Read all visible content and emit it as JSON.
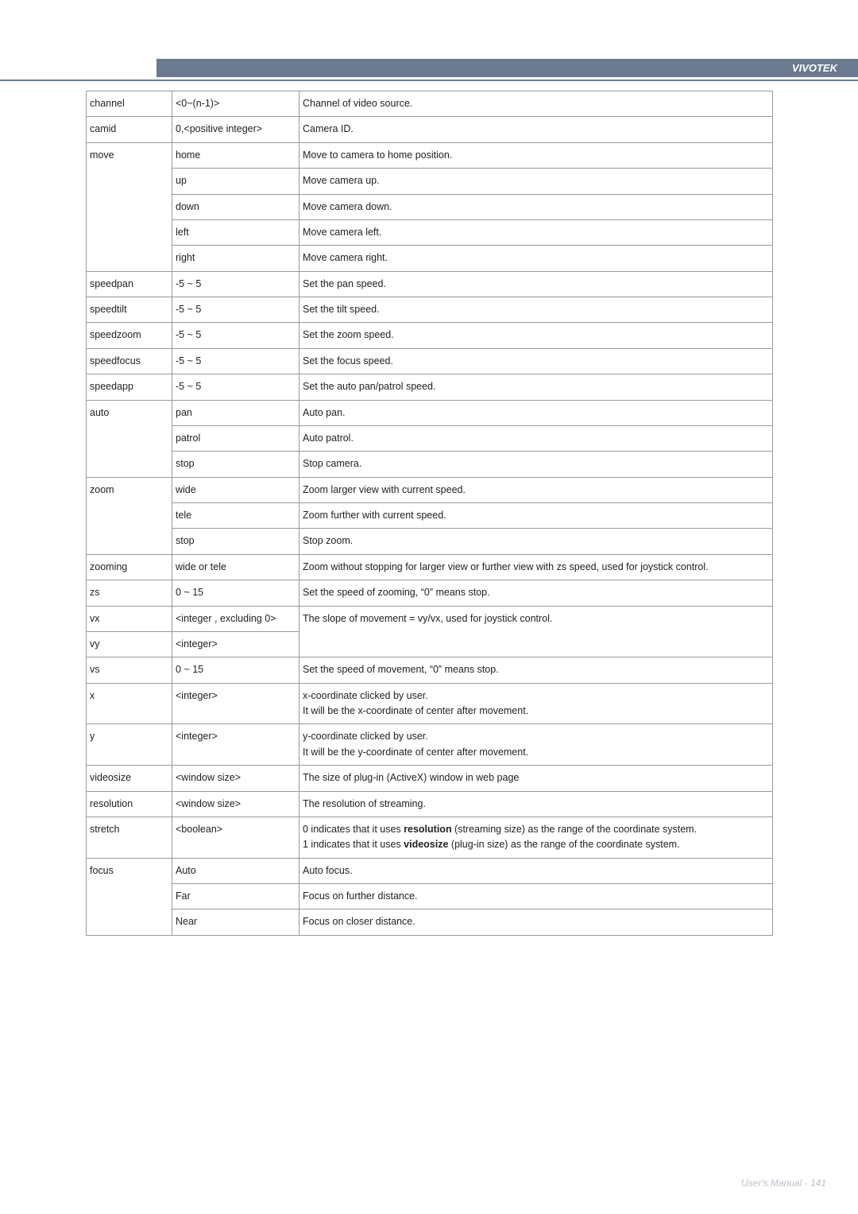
{
  "brand": "VIVOTEK",
  "footer": "User's Manual - 141",
  "rows": [
    {
      "p": "channel",
      "v": "<0~(n-1)>",
      "d": "Channel of video source."
    },
    {
      "p": "camid",
      "v": "0,<positive integer>",
      "d": "Camera ID."
    },
    {
      "p": "move",
      "v": "home",
      "d": "Move to camera to home position.",
      "open_bottom": true
    },
    {
      "p": "",
      "v": "up",
      "d": "Move camera up.",
      "cont": true
    },
    {
      "p": "",
      "v": "down",
      "d": "Move camera down.",
      "cont": true
    },
    {
      "p": "",
      "v": "left",
      "d": "Move camera left.",
      "cont": true
    },
    {
      "p": "",
      "v": "right",
      "d": "Move camera right.",
      "cont_last": true
    },
    {
      "p": "speedpan",
      "v": "-5 ~ 5",
      "d": "Set the pan speed."
    },
    {
      "p": "speedtilt",
      "v": "-5 ~ 5",
      "d": "Set the tilt speed."
    },
    {
      "p": "speedzoom",
      "v": "-5 ~ 5",
      "d": "Set the zoom speed."
    },
    {
      "p": "speedfocus",
      "v": "-5 ~ 5",
      "d": "Set the focus speed."
    },
    {
      "p": "speedapp",
      "v": "-5 ~ 5",
      "d": "Set the auto pan/patrol speed."
    },
    {
      "p": "auto",
      "v": "pan",
      "d": "Auto pan.",
      "open_bottom": true
    },
    {
      "p": "",
      "v": "patrol",
      "d": "Auto patrol.",
      "cont": true
    },
    {
      "p": "",
      "v": "stop",
      "d": "Stop camera.",
      "cont_last": true
    },
    {
      "p": "zoom",
      "v": "wide",
      "d": "Zoom larger view with current speed.",
      "open_bottom": true
    },
    {
      "p": "",
      "v": "tele",
      "d": "Zoom further with current speed.",
      "cont": true
    },
    {
      "p": "",
      "v": "stop",
      "d": "Stop zoom.",
      "cont_last": true
    },
    {
      "p": "zooming",
      "v": "wide or tele",
      "d": "Zoom without stopping for larger view or further view with zs speed, used for joystick control."
    },
    {
      "p": "zs",
      "v": "0 ~ 15",
      "d": "Set the speed of zooming, \"0\" means stop."
    },
    {
      "p": "vx",
      "v": "<integer , excluding 0>",
      "d": "The slope of movement = vy/vx, used for joystick control.",
      "open_bottom_desc": true
    },
    {
      "p": "vy",
      "v": "<integer>",
      "d": "",
      "desc_blank": true
    },
    {
      "p": "vs",
      "v": "0 ~ 15",
      "d": "Set the speed of movement, \"0\" means stop."
    },
    {
      "p": "x",
      "v": "<integer>",
      "d": "x-coordinate clicked by user.\nIt will be the x-coordinate of center after movement."
    },
    {
      "p": "y",
      "v": "<integer>",
      "d": "y-coordinate clicked by user.\nIt will be the y-coordinate of center after movement."
    },
    {
      "p": "videosize",
      "v": "<window size>",
      "d": "The size of plug-in (ActiveX) window in web page"
    },
    {
      "p": "resolution",
      "v": "<window size>",
      "d": "The resolution of streaming."
    },
    {
      "p": "stretch",
      "v": "<boolean>",
      "d_html": "0 indicates that it uses <b>resolution</b> (streaming size) as the range of the coordinate system.\n1 indicates that it uses <b>videosize</b> (plug-in size) as the range of the coordinate system."
    },
    {
      "p": "focus",
      "v": "Auto",
      "d": "Auto focus.",
      "open_bottom": true
    },
    {
      "p": "",
      "v": "Far",
      "d": "Focus on further distance.",
      "cont": true
    },
    {
      "p": "",
      "v": "Near",
      "d": "Focus on closer distance.",
      "cont_last": true
    }
  ]
}
